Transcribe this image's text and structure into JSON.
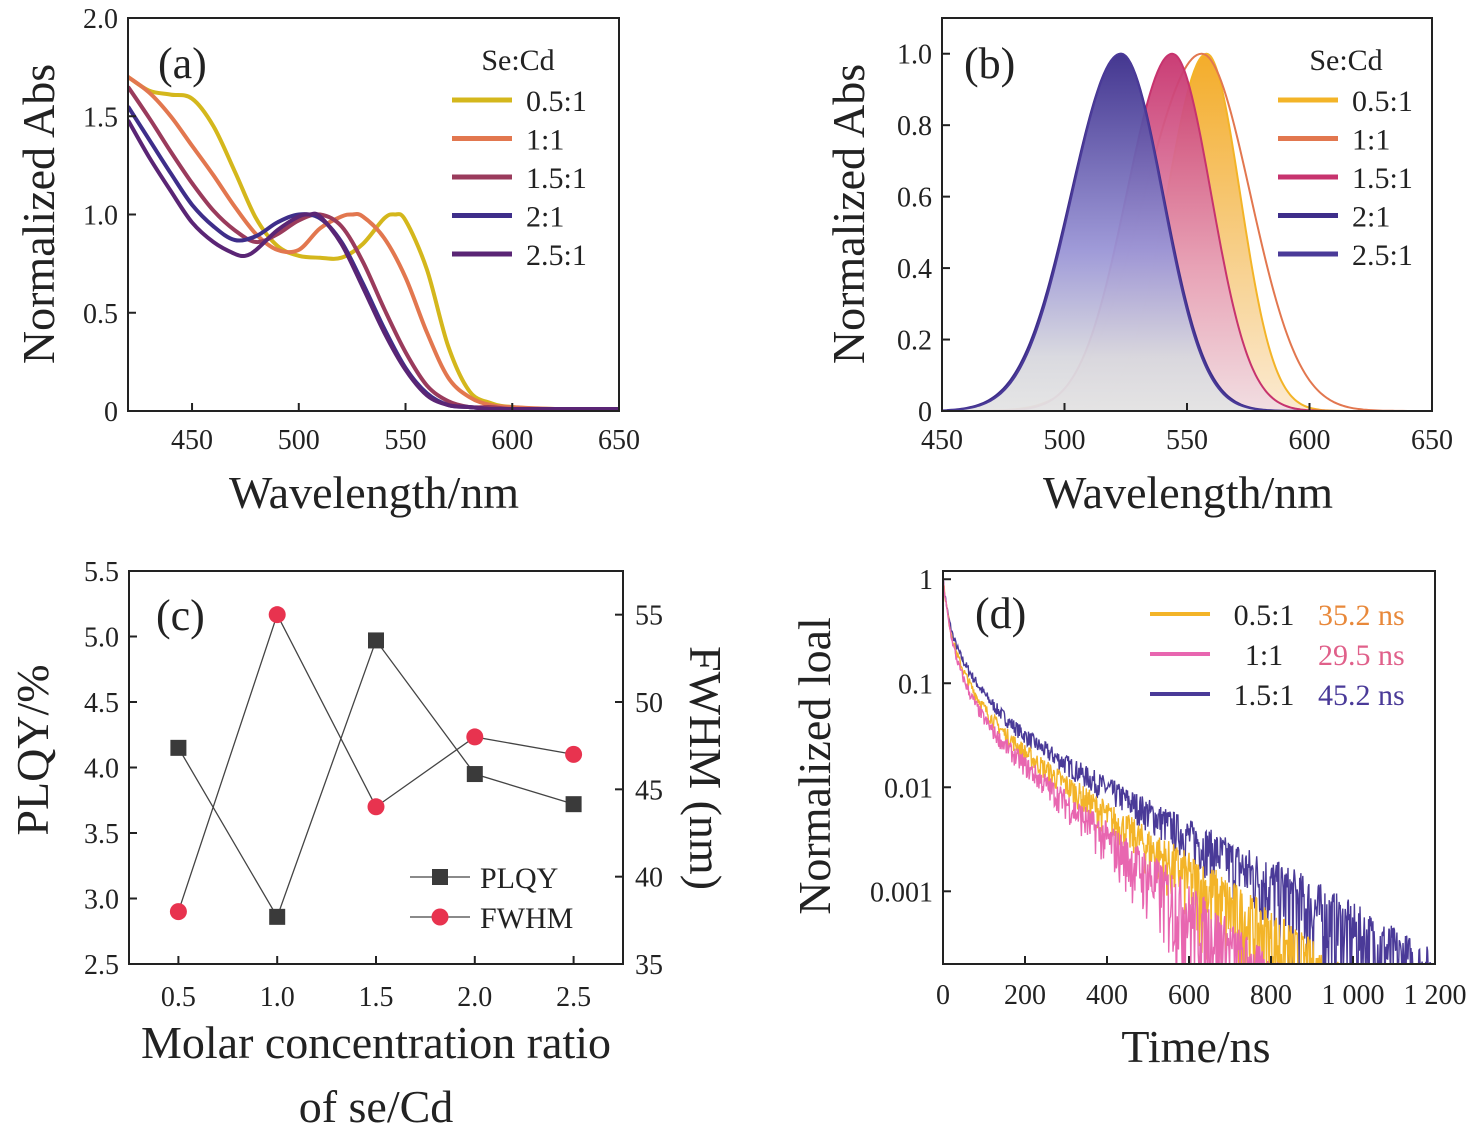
{
  "chart_data": [
    {
      "panel": "(a)",
      "type": "line",
      "xlabel": "Wavelength/nm",
      "ylabel": "Normalized Abs",
      "xlim": [
        420,
        650
      ],
      "ylim": [
        0,
        2.0
      ],
      "xticks": [
        450,
        500,
        550,
        600,
        650
      ],
      "yticks": [
        0,
        0.5,
        1.0,
        1.5,
        2.0
      ],
      "ytick_labels": [
        "0",
        "0.5",
        "1.0",
        "1.5",
        "2.0"
      ],
      "legend_title": "Se:Cd",
      "legend_position": "top-right",
      "series": [
        {
          "name": "0.5:1",
          "color": "#d4b71c",
          "x": [
            420,
            430,
            440,
            450,
            460,
            470,
            480,
            490,
            500,
            510,
            520,
            530,
            540,
            545,
            550,
            560,
            570,
            580,
            590,
            600,
            620,
            650
          ],
          "y": [
            1.7,
            1.63,
            1.61,
            1.59,
            1.45,
            1.22,
            0.98,
            0.84,
            0.79,
            0.78,
            0.78,
            0.85,
            0.98,
            1.0,
            0.97,
            0.72,
            0.33,
            0.1,
            0.04,
            0.02,
            0.01,
            0.01
          ]
        },
        {
          "name": "1:1",
          "color": "#e2774f",
          "x": [
            420,
            430,
            440,
            450,
            460,
            470,
            480,
            490,
            500,
            510,
            520,
            525,
            530,
            540,
            550,
            560,
            570,
            580,
            590,
            600,
            620,
            650
          ],
          "y": [
            1.7,
            1.62,
            1.5,
            1.35,
            1.2,
            1.04,
            0.9,
            0.82,
            0.82,
            0.93,
            0.99,
            1.0,
            0.99,
            0.88,
            0.68,
            0.4,
            0.17,
            0.07,
            0.03,
            0.02,
            0.01,
            0.01
          ]
        },
        {
          "name": "1.5:1",
          "color": "#9a3b5c",
          "x": [
            420,
            430,
            440,
            450,
            460,
            470,
            480,
            490,
            500,
            510,
            520,
            530,
            540,
            550,
            560,
            570,
            580,
            590,
            600,
            620,
            650
          ],
          "y": [
            1.65,
            1.49,
            1.32,
            1.16,
            1.02,
            0.92,
            0.86,
            0.9,
            0.97,
            1.0,
            0.94,
            0.76,
            0.52,
            0.3,
            0.13,
            0.05,
            0.02,
            0.02,
            0.01,
            0.01,
            0.01
          ]
        },
        {
          "name": "2:1",
          "color": "#3e2e8a",
          "x": [
            420,
            430,
            440,
            450,
            460,
            470,
            480,
            490,
            500,
            510,
            520,
            530,
            540,
            550,
            560,
            570,
            580,
            590,
            600,
            620,
            650
          ],
          "y": [
            1.55,
            1.38,
            1.21,
            1.05,
            0.94,
            0.87,
            0.89,
            0.96,
            1.0,
            0.98,
            0.86,
            0.65,
            0.42,
            0.22,
            0.09,
            0.03,
            0.02,
            0.01,
            0.01,
            0.01,
            0.01
          ]
        },
        {
          "name": "2.5:1",
          "color": "#5a2575",
          "x": [
            420,
            430,
            440,
            450,
            460,
            470,
            475,
            480,
            490,
            500,
            505,
            510,
            520,
            530,
            540,
            550,
            560,
            570,
            580,
            590,
            600,
            620,
            650
          ],
          "y": [
            1.48,
            1.29,
            1.12,
            0.96,
            0.86,
            0.8,
            0.79,
            0.82,
            0.92,
            0.99,
            1.0,
            0.99,
            0.85,
            0.63,
            0.4,
            0.21,
            0.08,
            0.03,
            0.02,
            0.01,
            0.01,
            0.01,
            0.01
          ]
        }
      ]
    },
    {
      "panel": "(b)",
      "type": "area",
      "xlabel": "Wavelength/nm",
      "ylabel": "Normalized Abs",
      "xlim": [
        450,
        650
      ],
      "ylim": [
        0,
        1.1
      ],
      "xticks": [
        450,
        500,
        550,
        600,
        650
      ],
      "yticks": [
        0,
        0.2,
        0.4,
        0.6,
        0.8,
        1.0
      ],
      "ytick_labels": [
        "0",
        "0.2",
        "0.4",
        "0.6",
        "0.8",
        "1.0"
      ],
      "legend_title": "Se:Cd",
      "legend_position": "top-right",
      "series": [
        {
          "name": "0.5:1",
          "color": "#f3b428",
          "peak": 558,
          "fwhm": 38
        },
        {
          "name": "1:1",
          "color": "#e2774f",
          "peak": 556,
          "fwhm": 55
        },
        {
          "name": "1.5:1",
          "color": "#c7336e",
          "peak": 544,
          "fwhm": 44
        },
        {
          "name": "2:1",
          "color": "#3e2e8a",
          "peak": 523,
          "fwhm": 48
        },
        {
          "name": "2.5:1",
          "color": "#4a3a98",
          "peak": 523,
          "fwhm": 47
        }
      ]
    },
    {
      "panel": "(c)",
      "type": "scatter",
      "xlabel": "Molar concentration ratio",
      "xlabel_line2": "of se/Cd",
      "ylabel": "PLQY/%",
      "ylabel_right": "FWHM (nm)",
      "xlim": [
        0.25,
        2.75
      ],
      "ylim": [
        2.5,
        5.5
      ],
      "ylim_right": [
        35,
        57.5
      ],
      "xticks": [
        0.5,
        1.0,
        1.5,
        2.0,
        2.5
      ],
      "xtick_labels": [
        "0.5",
        "1.0",
        "1.5",
        "2.0",
        "2.5"
      ],
      "yticks": [
        2.5,
        3.0,
        3.5,
        4.0,
        4.5,
        5.0,
        5.5
      ],
      "ytick_labels": [
        "2.5",
        "3.0",
        "3.5",
        "4.0",
        "4.5",
        "5.0",
        "5.5"
      ],
      "yticks_right": [
        35,
        40,
        45,
        50,
        55
      ],
      "legend_position": "bottom-right",
      "series": [
        {
          "name": "PLQY",
          "axis": "left",
          "marker": "square",
          "color": "#3a3a3a",
          "x": [
            0.5,
            1.0,
            1.5,
            2.0,
            2.5
          ],
          "y": [
            4.15,
            2.86,
            4.97,
            3.95,
            3.72
          ]
        },
        {
          "name": "FWHM",
          "axis": "right",
          "marker": "circle",
          "color": "#e8334f",
          "x": [
            0.5,
            1.0,
            1.5,
            2.0,
            2.5
          ],
          "y": [
            38,
            55,
            44,
            48,
            47
          ]
        }
      ]
    },
    {
      "panel": "(d)",
      "type": "line",
      "xlabel": "Time/ns",
      "ylabel": "Normalized loal",
      "xlim": [
        0,
        1200
      ],
      "ylim": [
        0.0002,
        1.2
      ],
      "yscale": "log",
      "xticks": [
        0,
        200,
        400,
        600,
        800,
        1000,
        1200
      ],
      "xtick_labels": [
        "0",
        "200",
        "400",
        "600",
        "800",
        "1 000",
        "1 200"
      ],
      "yticks": [
        1,
        0.1,
        0.01,
        0.001
      ],
      "ytick_labels": [
        "1",
        "0.1",
        "0.01",
        "0.001"
      ],
      "legend_position": "top-right",
      "series": [
        {
          "name": "0.5:1",
          "lifetime": "35.2 ns",
          "color": "#f3b428",
          "label_color": "#e8883a",
          "tau": 35.2
        },
        {
          "name": "1:1",
          "lifetime": "29.5 ns",
          "color": "#e866b0",
          "label_color": "#e0608a",
          "tau": 29.5
        },
        {
          "name": "1.5:1",
          "lifetime": "45.2 ns",
          "color": "#4a3a98",
          "label_color": "#4a3a98",
          "tau": 45.2
        }
      ]
    }
  ]
}
